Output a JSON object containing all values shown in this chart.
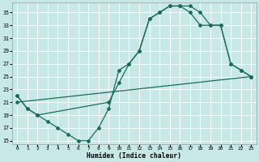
{
  "bg_color": "#c8e8e8",
  "grid_color": "#ffffff",
  "line_color": "#1a6b5a",
  "xlabel": "Humidex (Indice chaleur)",
  "xlim": [
    -0.5,
    23.5
  ],
  "ylim": [
    14.5,
    36.5
  ],
  "yticks": [
    15,
    17,
    19,
    21,
    23,
    25,
    27,
    29,
    31,
    33,
    35
  ],
  "xticks": [
    0,
    1,
    2,
    3,
    4,
    5,
    6,
    7,
    8,
    9,
    10,
    11,
    12,
    13,
    14,
    15,
    16,
    17,
    18,
    19,
    20,
    21,
    22,
    23
  ],
  "line1_x": [
    0,
    1,
    2,
    3,
    4,
    5,
    6,
    7,
    8,
    9,
    10,
    11,
    12,
    13,
    14,
    15,
    16,
    17,
    18,
    19,
    20,
    21,
    22,
    23
  ],
  "line1_y": [
    22,
    20,
    19,
    18,
    17,
    16,
    15,
    15,
    17,
    20,
    26,
    27,
    29,
    34,
    35,
    36,
    36,
    35,
    33,
    33,
    33,
    27,
    26,
    25
  ],
  "line2_x": [
    0,
    1,
    2,
    9,
    10,
    11,
    12,
    13,
    14,
    15,
    16,
    17,
    18,
    19,
    20,
    21,
    22,
    23
  ],
  "line2_y": [
    22,
    20,
    19,
    21,
    24,
    27,
    29,
    34,
    35,
    36,
    36,
    36,
    35,
    33,
    33,
    27,
    26,
    25
  ],
  "line3_x": [
    0,
    23
  ],
  "line3_y": [
    21,
    25
  ]
}
